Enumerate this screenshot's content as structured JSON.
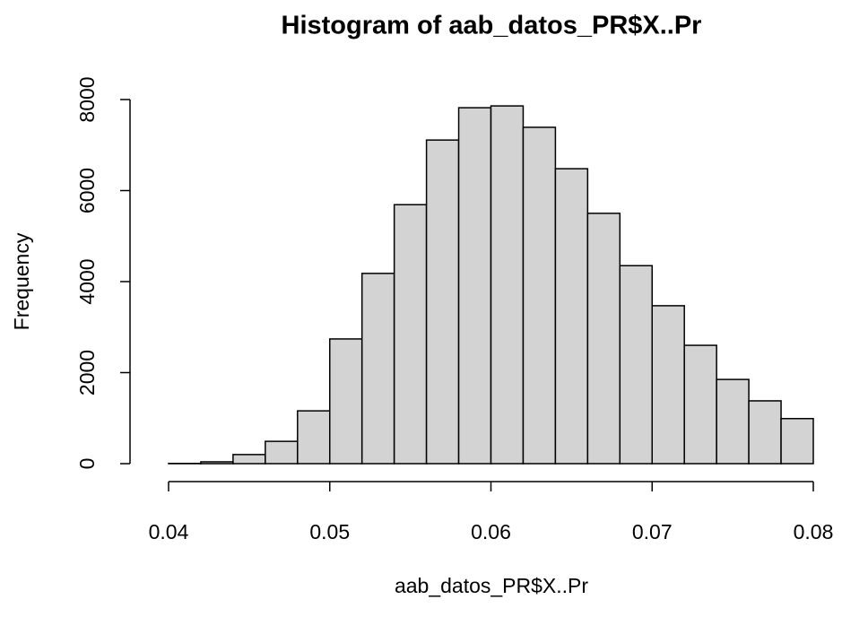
{
  "chart_data": {
    "type": "histogram",
    "title": "Histogram of aab_datos_PR$X..Pr",
    "x_label": "aab_datos_PR$X..Pr",
    "y_label": "Frequency",
    "bins": [
      0.04,
      0.042,
      0.044,
      0.046,
      0.048,
      0.05,
      0.052,
      0.054,
      0.056,
      0.058,
      0.06,
      0.062,
      0.064,
      0.066,
      0.068,
      0.07,
      0.072,
      0.074,
      0.076,
      0.078,
      0.08
    ],
    "counts": [
      5,
      40,
      200,
      490,
      1160,
      2740,
      4180,
      5690,
      7110,
      7820,
      7860,
      7390,
      6480,
      5500,
      4350,
      3470,
      2600,
      1850,
      1380,
      990
    ],
    "color": "#d3d3d3",
    "xlim": [
      0.04,
      0.08
    ],
    "xticks": [
      0.04,
      0.05,
      0.06,
      0.07,
      0.08
    ],
    "ylim": [
      0,
      8000
    ],
    "yticks": [
      0,
      2000,
      4000,
      6000,
      8000
    ]
  }
}
